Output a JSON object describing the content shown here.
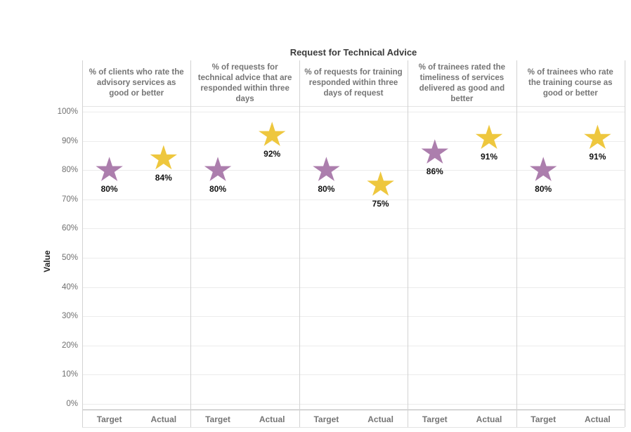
{
  "chart_data": {
    "type": "scatter",
    "marker": "star",
    "title": "Request for Technical Advice",
    "ylabel": "Value",
    "ylim": [
      0,
      100
    ],
    "ytick_step": 10,
    "ytick_labels": [
      "0%",
      "10%",
      "20%",
      "30%",
      "40%",
      "50%",
      "60%",
      "70%",
      "80%",
      "90%",
      "100%"
    ],
    "grid": true,
    "x_categories": [
      "Target",
      "Actual"
    ],
    "panels": [
      "% of clients who rate the advisory services as good or better",
      "% of requests for technical advice that are responded within three days",
      "% of requests for training responded within three days of request",
      "% of trainees rated the timeliness of services delivered as good and better",
      "% of trainees who rate the training course as good or better"
    ],
    "series": [
      {
        "name": "Target",
        "color": "#ac7ead",
        "values": [
          80,
          80,
          80,
          86,
          80
        ],
        "labels": [
          "80%",
          "80%",
          "80%",
          "86%",
          "80%"
        ]
      },
      {
        "name": "Actual",
        "color": "#eec73e",
        "values": [
          84,
          92,
          75,
          91,
          91
        ],
        "labels": [
          "84%",
          "92%",
          "75%",
          "91%",
          "91%"
        ]
      }
    ],
    "colors": {
      "target": "#ac7ead",
      "actual": "#eec73e",
      "grid": "#ececec",
      "axis_line": "#b3b3b3",
      "separator": "#d2d2d2",
      "header_text": "#757575",
      "label_text": "#111111"
    }
  }
}
